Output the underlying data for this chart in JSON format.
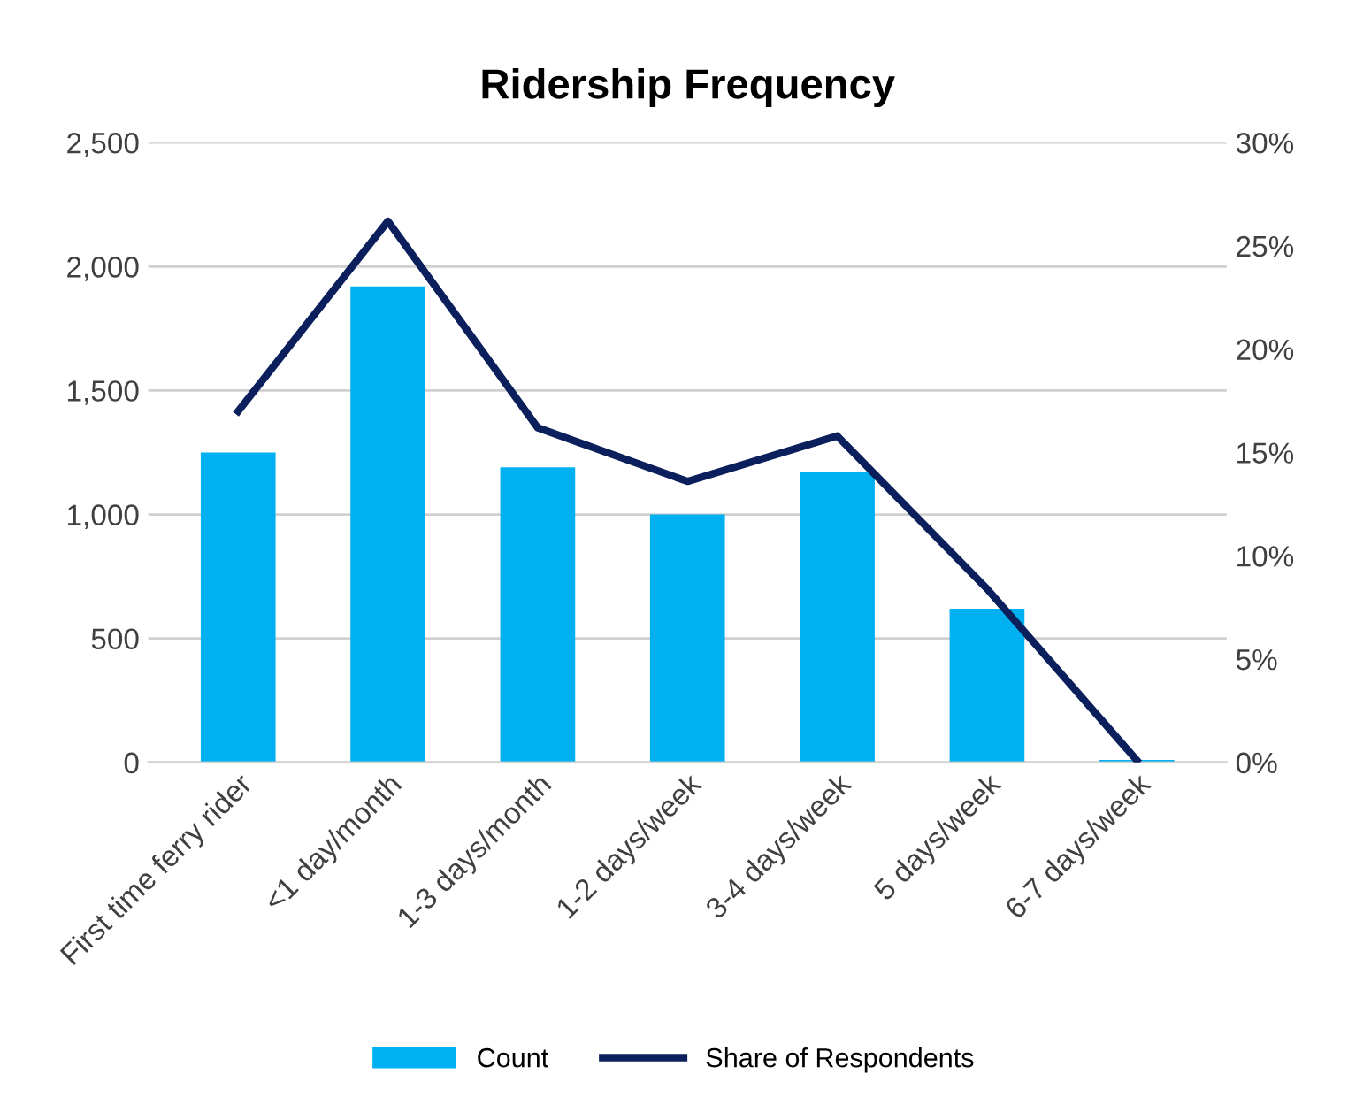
{
  "chart_data": {
    "type": "bar",
    "title": "Ridership Frequency",
    "categories": [
      "First time ferry rider",
      "<1 day/month",
      "1-3 days/month",
      "1-2 days/week",
      "3-4 days/week",
      "5 days/week",
      "6-7 days/week"
    ],
    "series": [
      {
        "name": "Count",
        "color": "#00b0f0",
        "values": [
          1250,
          1920,
          1190,
          1000,
          1170,
          620,
          10
        ]
      },
      {
        "name": "Share of Respondents",
        "type": "line",
        "axis": "y2",
        "color": "#0a1f5c",
        "values": [
          17.0,
          26.2,
          16.2,
          13.6,
          15.8,
          8.4,
          0.1
        ]
      }
    ],
    "ylim": [
      0,
      2500
    ],
    "yticks": [
      {
        "value": 0,
        "label": "0"
      },
      {
        "value": 500,
        "label": "500"
      },
      {
        "value": 1000,
        "label": "1,000"
      },
      {
        "value": 1500,
        "label": "1,500"
      },
      {
        "value": 2000,
        "label": "2,000"
      },
      {
        "value": 2500,
        "label": "2,500"
      }
    ],
    "y2lim": [
      0,
      30
    ],
    "y2ticks": [
      {
        "value": 0,
        "label": "0%"
      },
      {
        "value": 5,
        "label": "5%"
      },
      {
        "value": 10,
        "label": "10%"
      },
      {
        "value": 15,
        "label": "15%"
      },
      {
        "value": 20,
        "label": "20%"
      },
      {
        "value": 25,
        "label": "25%"
      },
      {
        "value": 30,
        "label": "30%"
      }
    ],
    "grid": "y",
    "legend": "bottom",
    "marker": "none"
  }
}
